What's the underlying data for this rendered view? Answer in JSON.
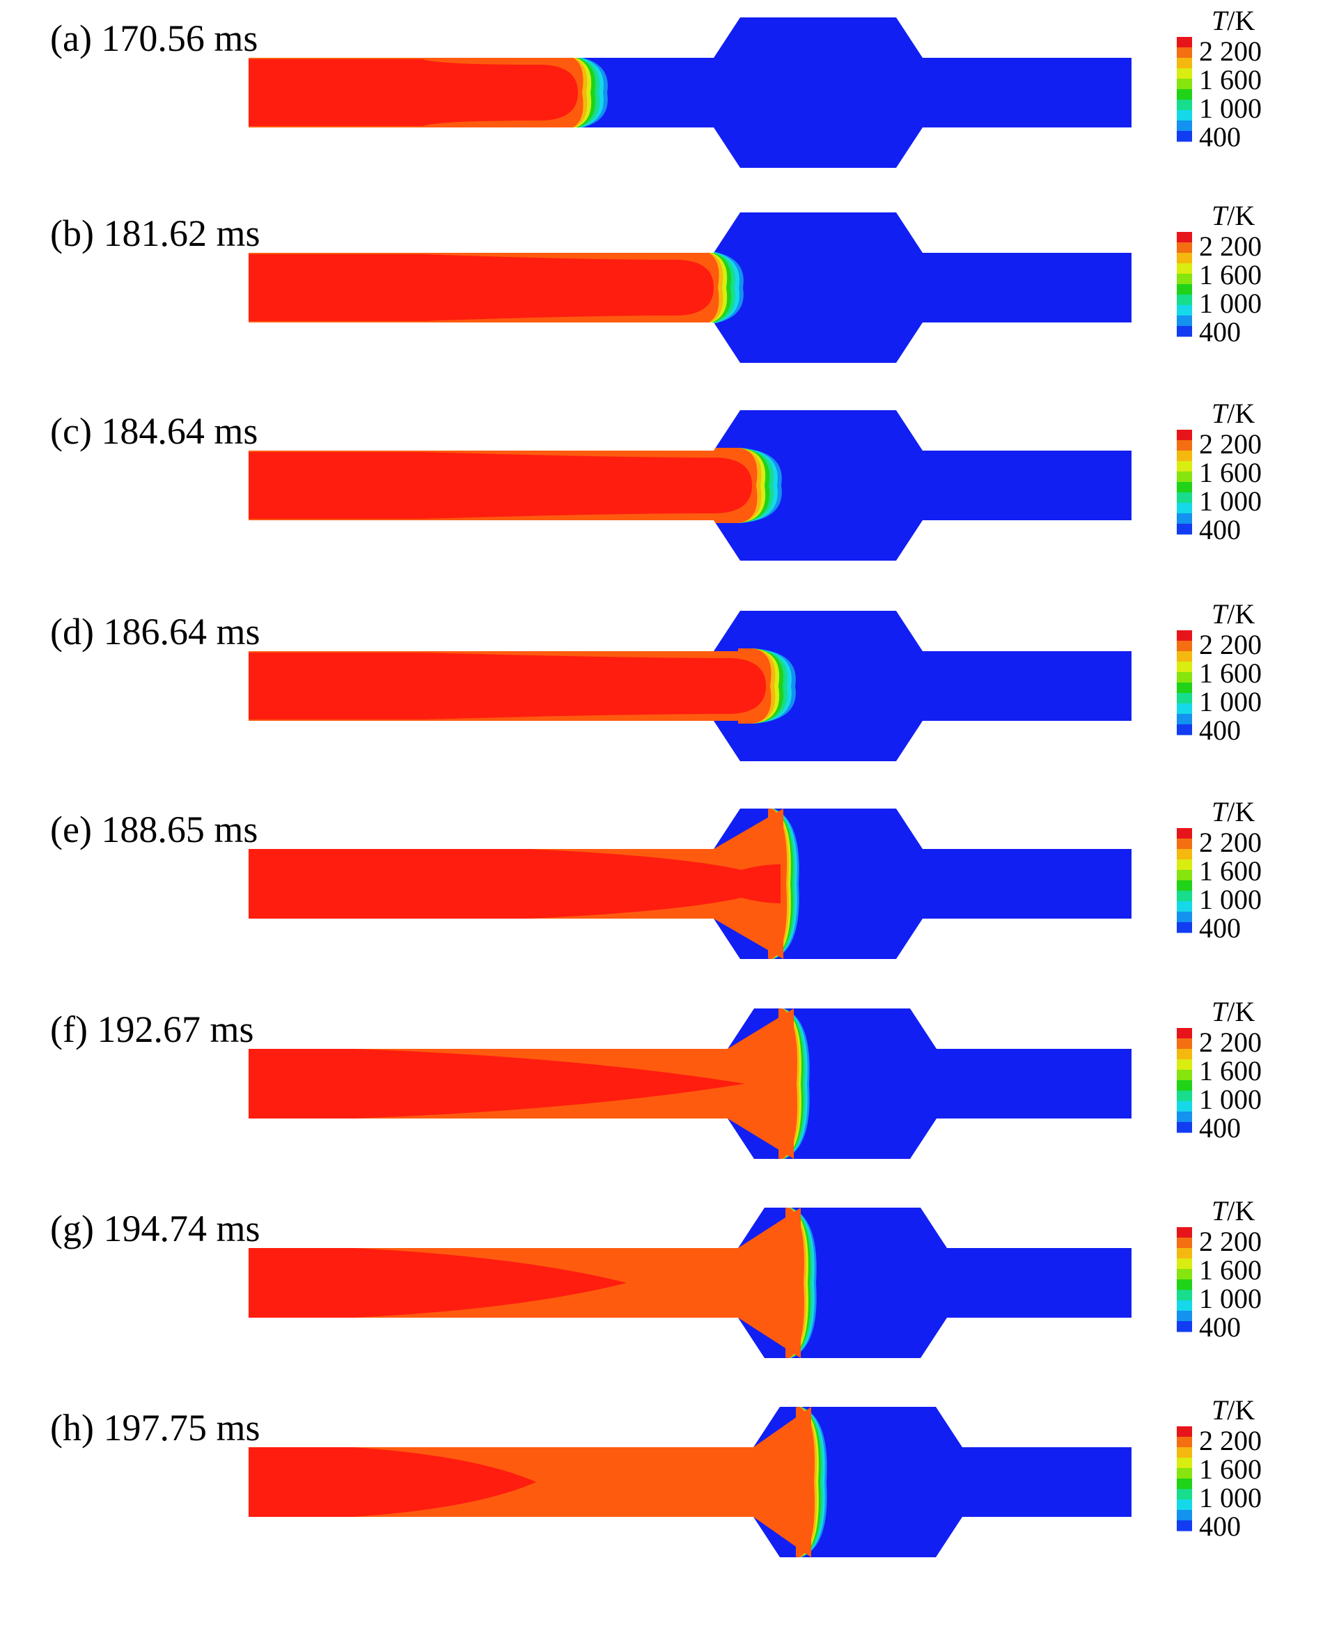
{
  "colormap": {
    "title_symbol": "T",
    "title_unit": "/K",
    "tick_labels": [
      "2 200",
      "1 600",
      "1 000",
      "400"
    ],
    "colors": [
      "#e8141b",
      "#f36f12",
      "#f5b80f",
      "#d9ed11",
      "#86e40f",
      "#20d318",
      "#17dd8d",
      "#15d9e8",
      "#1392ef",
      "#123cf2"
    ]
  },
  "fluid_colors": {
    "hot_core": "#ff1d0f",
    "warm": "#ff5b0f",
    "cold": "#121ff2"
  },
  "panels": [
    {
      "id": "a",
      "label": "(a) 170.56 ms"
    },
    {
      "id": "b",
      "label": "(b) 181.62 ms"
    },
    {
      "id": "c",
      "label": "(c) 184.64 ms"
    },
    {
      "id": "d",
      "label": "(d) 186.64 ms"
    },
    {
      "id": "e",
      "label": "(e) 188.65 ms"
    },
    {
      "id": "f",
      "label": "(f) 192.67 ms"
    },
    {
      "id": "g",
      "label": "(g) 194.74 ms"
    },
    {
      "id": "h",
      "label": "(h) 197.75 ms"
    }
  ]
}
